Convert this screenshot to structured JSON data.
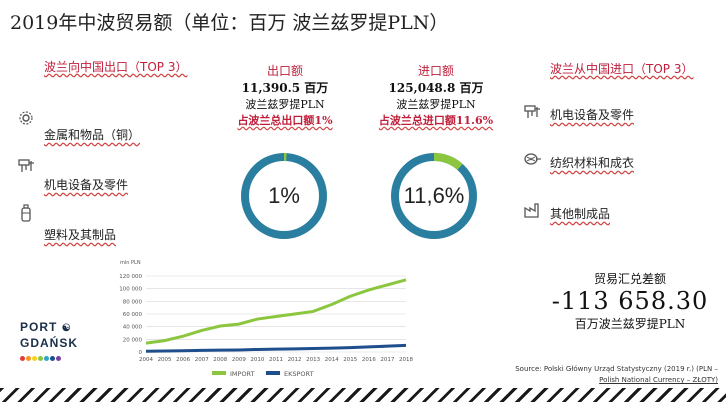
{
  "title": "2019年中波贸易额（单位：百万 波兰兹罗提PLN）",
  "left_panel": {
    "heading": "波兰向中国出口（TOP 3）",
    "items": [
      {
        "icon": "gear-icon",
        "label": "金属和物品（铜）"
      },
      {
        "icon": "machinery-icon",
        "label": "机电设备及零件"
      },
      {
        "icon": "bottle-icon",
        "label": "塑料及其制品"
      }
    ]
  },
  "export_col": {
    "heading": "出口额",
    "value": "11,390.5 百万",
    "unit": "波兰兹罗提PLN",
    "share_text": "占波兰总出口额1%",
    "donut_label": "1%",
    "donut_fraction": 0.01
  },
  "import_col": {
    "heading": "进口额",
    "value": "125,048.8 百万",
    "unit": "波兰兹罗提PLN",
    "share_text": "占波兰总进口额11.6%",
    "donut_label": "11,6%",
    "donut_fraction": 0.116
  },
  "right_panel": {
    "heading": "波兰从中国进口（TOP 3）",
    "items": [
      {
        "icon": "machinery-icon",
        "label": "机电设备及零件"
      },
      {
        "icon": "textile-icon",
        "label": "纺织材料和成衣"
      },
      {
        "icon": "factory-icon",
        "label": "其他制成品"
      }
    ]
  },
  "balance": {
    "title": "贸易汇兑差额",
    "value": "-113 658.30",
    "unit": "百万波兰兹罗提PLN"
  },
  "logo": {
    "line1": "PORT",
    "line2": "GDAŃSK"
  },
  "source": {
    "line1": "Source: Polski Główny Urząd Statystyczny (2019 r.) (PLN –",
    "line2": "Polish National Currency – ZŁOTY)"
  },
  "colors": {
    "import": "#8cc63f",
    "export": "#1f4e8c",
    "donut_track": "#2a7fa0",
    "accent": "#c0203c"
  },
  "chart_data": {
    "type": "line",
    "title": "",
    "unit_label": "mln PLN",
    "x": [
      "2004",
      "2005",
      "2006",
      "2007",
      "2008",
      "2009",
      "2010",
      "2011",
      "2012",
      "2013",
      "2014",
      "2015",
      "2016",
      "2017",
      "2018"
    ],
    "series": [
      {
        "name": "IMPORT",
        "values": [
          14000,
          18000,
          25000,
          34000,
          41000,
          44000,
          52000,
          56000,
          60000,
          64000,
          75000,
          88000,
          98000,
          106000,
          114000
        ]
      },
      {
        "name": "EKSPORT",
        "values": [
          1200,
          1500,
          2000,
          2500,
          3000,
          3200,
          4000,
          4500,
          5000,
          5500,
          6200,
          7000,
          8000,
          9200,
          10500
        ]
      }
    ],
    "yticks": [
      "0",
      "20 000",
      "40 000",
      "60 000",
      "80 000",
      "100 000",
      "120 000"
    ],
    "ylim": [
      0,
      120000
    ],
    "grid": true,
    "legend": "bottom"
  }
}
